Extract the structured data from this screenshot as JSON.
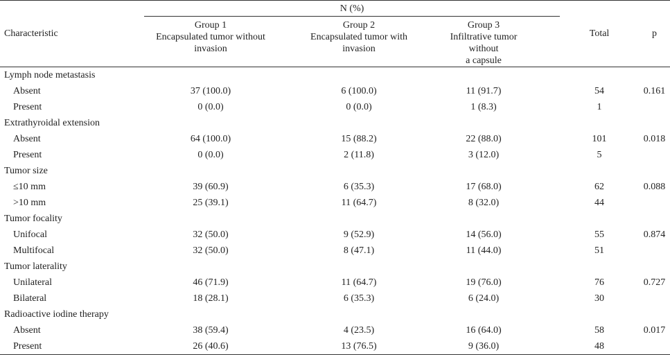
{
  "header": {
    "characteristic": "Characteristic",
    "n_pct": "N (%)",
    "groups": [
      {
        "name": "Group 1",
        "desc_lines": [
          "Encapsulated tumor without",
          "invasion"
        ]
      },
      {
        "name": "Group 2",
        "desc_lines": [
          "Encapsulated tumor with",
          "invasion"
        ]
      },
      {
        "name": "Group 3",
        "desc_lines": [
          "Infiltrative tumor without",
          "a capsule"
        ]
      }
    ],
    "total": "Total",
    "p": "p"
  },
  "sections": [
    {
      "label": "Lymph node metastasis",
      "rows": [
        {
          "label": "Absent",
          "values": [
            "37 (100.0)",
            "6 (100.0)",
            "11 (91.7)"
          ],
          "total": "54",
          "p": "0.161"
        },
        {
          "label": "Present",
          "values": [
            "0 (0.0)",
            "0 (0.0)",
            "1 (8.3)"
          ],
          "total": "1"
        }
      ]
    },
    {
      "label": "Extrathyroidal extension",
      "rows": [
        {
          "label": "Absent",
          "values": [
            "64 (100.0)",
            "15 (88.2)",
            "22 (88.0)"
          ],
          "total": "101",
          "p": "0.018"
        },
        {
          "label": "Present",
          "values": [
            "0 (0.0)",
            "2 (11.8)",
            "3 (12.0)"
          ],
          "total": "5"
        }
      ]
    },
    {
      "label": "Tumor size",
      "rows": [
        {
          "label": "≤10 mm",
          "values": [
            "39 (60.9)",
            "6 (35.3)",
            "17 (68.0)"
          ],
          "total": "62",
          "p": "0.088"
        },
        {
          "label": ">10 mm",
          "values": [
            "25 (39.1)",
            "11 (64.7)",
            "8 (32.0)"
          ],
          "total": "44"
        }
      ]
    },
    {
      "label": "Tumor focality",
      "rows": [
        {
          "label": "Unifocal",
          "values": [
            "32 (50.0)",
            "9 (52.9)",
            "14 (56.0)"
          ],
          "total": "55",
          "p": "0.874"
        },
        {
          "label": "Multifocal",
          "values": [
            "32 (50.0)",
            "8 (47.1)",
            "11 (44.0)"
          ],
          "total": "51"
        }
      ]
    },
    {
      "label": "Tumor laterality",
      "rows": [
        {
          "label": "Unilateral",
          "values": [
            "46 (71.9)",
            "11 (64.7)",
            "19 (76.0)"
          ],
          "total": "76",
          "p": "0.727"
        },
        {
          "label": "Bilateral",
          "values": [
            "18 (28.1)",
            "6 (35.3)",
            "6 (24.0)"
          ],
          "total": "30"
        }
      ]
    },
    {
      "label": "Radioactive iodine therapy",
      "rows": [
        {
          "label": "Absent",
          "values": [
            "38 (59.4)",
            "4 (23.5)",
            "16 (64.0)"
          ],
          "total": "58",
          "p": "0.017"
        },
        {
          "label": "Present",
          "values": [
            "26 (40.6)",
            "13 (76.5)",
            "9 (36.0)"
          ],
          "total": "48"
        }
      ]
    }
  ]
}
